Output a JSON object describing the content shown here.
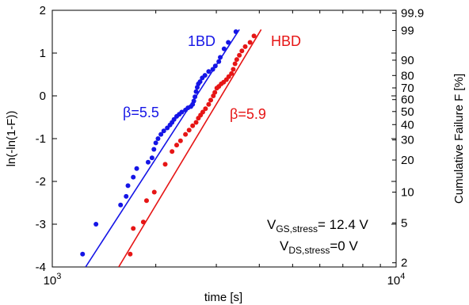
{
  "chart_data": {
    "type": "scatter",
    "xlabel": "time [s]",
    "ylabel_left": "ln(-ln(1-F))",
    "ylabel_right": "Cumulative Failure F [%]",
    "xscale": "log",
    "xlim": [
      1000,
      10000
    ],
    "ylim": [
      -4,
      2
    ],
    "x_ticks": [
      {
        "value": 1000,
        "base": "10",
        "exp": "3"
      },
      {
        "value": 10000,
        "base": "10",
        "exp": "4"
      }
    ],
    "y_ticks": [
      2,
      1,
      0,
      -1,
      -2,
      -3,
      -4
    ],
    "right_ticks": [
      {
        "label": "99.9",
        "F": 99.9
      },
      {
        "label": "99",
        "F": 99
      },
      {
        "label": "90",
        "F": 90
      },
      {
        "label": "80",
        "F": 80
      },
      {
        "label": "70",
        "F": 70
      },
      {
        "label": "60",
        "F": 60
      },
      {
        "label": "50",
        "F": 50
      },
      {
        "label": "40",
        "F": 40
      },
      {
        "label": "30",
        "F": 30
      },
      {
        "label": "20",
        "F": 20
      },
      {
        "label": "10",
        "F": 10
      },
      {
        "label": "5",
        "F": 5
      },
      {
        "label": "2",
        "F": 2
      }
    ],
    "series": [
      {
        "name": "1BD",
        "color": "#1515e6",
        "beta_label": "β=5.5",
        "fit": [
          [
            1250,
            -4.0
          ],
          [
            3500,
            1.55
          ]
        ],
        "points": [
          [
            1225,
            -3.7
          ],
          [
            1340,
            -3.0
          ],
          [
            1580,
            -2.55
          ],
          [
            1640,
            -2.35
          ],
          [
            1660,
            -2.1
          ],
          [
            1720,
            -1.9
          ],
          [
            1760,
            -1.7
          ],
          [
            1900,
            -1.55
          ],
          [
            1950,
            -1.45
          ],
          [
            1975,
            -1.25
          ],
          [
            2000,
            -1.1
          ],
          [
            2030,
            -1.0
          ],
          [
            2070,
            -0.9
          ],
          [
            2110,
            -0.82
          ],
          [
            2160,
            -0.75
          ],
          [
            2200,
            -0.68
          ],
          [
            2230,
            -0.62
          ],
          [
            2260,
            -0.55
          ],
          [
            2300,
            -0.48
          ],
          [
            2340,
            -0.43
          ],
          [
            2380,
            -0.38
          ],
          [
            2440,
            -0.33
          ],
          [
            2480,
            -0.28
          ],
          [
            2530,
            -0.25
          ],
          [
            2560,
            -0.2
          ],
          [
            2580,
            -0.12
          ],
          [
            2600,
            -0.02
          ],
          [
            2620,
            0.1
          ],
          [
            2640,
            0.2
          ],
          [
            2660,
            0.28
          ],
          [
            2690,
            0.33
          ],
          [
            2730,
            0.42
          ],
          [
            2780,
            0.48
          ],
          [
            2850,
            0.57
          ],
          [
            2930,
            0.62
          ],
          [
            2980,
            0.7
          ],
          [
            3050,
            0.8
          ],
          [
            3080,
            0.9
          ],
          [
            3160,
            1.1
          ],
          [
            3250,
            1.25
          ],
          [
            3420,
            1.5
          ]
        ]
      },
      {
        "name": "HBD",
        "color": "#e61515",
        "beta_label": "β=5.9",
        "fit": [
          [
            1560,
            -4.0
          ],
          [
            4050,
            1.55
          ]
        ],
        "points": [
          [
            1685,
            -3.7
          ],
          [
            1720,
            -3.1
          ],
          [
            1840,
            -2.95
          ],
          [
            1880,
            -2.45
          ],
          [
            1980,
            -2.25
          ],
          [
            2130,
            -1.6
          ],
          [
            2230,
            -1.3
          ],
          [
            2300,
            -1.15
          ],
          [
            2360,
            -1.05
          ],
          [
            2440,
            -0.9
          ],
          [
            2500,
            -0.8
          ],
          [
            2560,
            -0.7
          ],
          [
            2620,
            -0.62
          ],
          [
            2660,
            -0.52
          ],
          [
            2700,
            -0.45
          ],
          [
            2740,
            -0.38
          ],
          [
            2790,
            -0.3
          ],
          [
            2850,
            -0.2
          ],
          [
            2890,
            -0.1
          ],
          [
            2940,
            0.0
          ],
          [
            2970,
            0.08
          ],
          [
            3010,
            0.18
          ],
          [
            3050,
            0.22
          ],
          [
            3100,
            0.28
          ],
          [
            3150,
            0.32
          ],
          [
            3210,
            0.38
          ],
          [
            3260,
            0.45
          ],
          [
            3320,
            0.52
          ],
          [
            3360,
            0.62
          ],
          [
            3400,
            0.75
          ],
          [
            3440,
            0.85
          ],
          [
            3500,
            0.95
          ],
          [
            3560,
            1.05
          ],
          [
            3640,
            1.15
          ],
          [
            3760,
            1.25
          ],
          [
            3860,
            1.4
          ]
        ]
      }
    ],
    "conditions": [
      {
        "main": "V",
        "sub": "GS,stress",
        "rest": "= 12.4 V"
      },
      {
        "main": "V",
        "sub": "DS,stress",
        "rest": "=0 V"
      }
    ]
  }
}
